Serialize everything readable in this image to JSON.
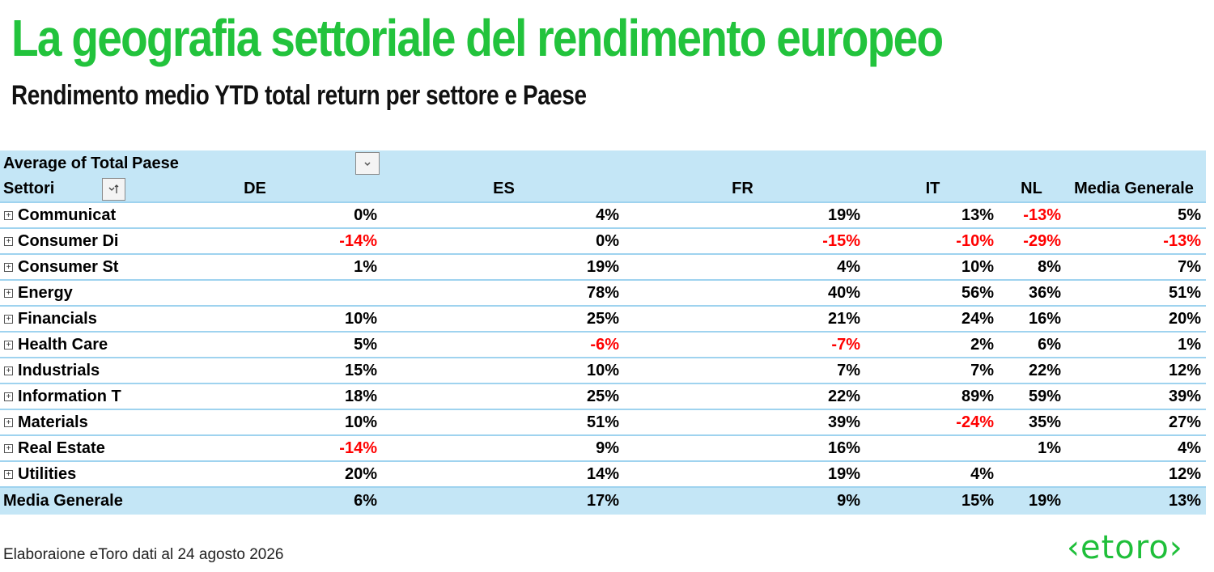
{
  "header": {
    "title": "La geografia settoriale del rendimento europeo",
    "subtitle": "Rendimento medio YTD total return per settore e Paese"
  },
  "pivot": {
    "value_field_label": "Average of Total",
    "column_field_label": "Paese",
    "row_field_label": "Settori",
    "columns": [
      "DE",
      "ES",
      "FR",
      "IT",
      "NL",
      "Media Generale"
    ],
    "rows": [
      {
        "label": "Communicat",
        "values": [
          "0%",
          "4%",
          "19%",
          "13%",
          "-13%",
          "5%"
        ]
      },
      {
        "label": "Consumer Di",
        "values": [
          "-14%",
          "0%",
          "-15%",
          "-10%",
          "-29%",
          "-13%"
        ]
      },
      {
        "label": "Consumer St",
        "values": [
          "1%",
          "19%",
          "4%",
          "10%",
          "8%",
          "7%"
        ]
      },
      {
        "label": "Energy",
        "values": [
          "",
          "78%",
          "40%",
          "56%",
          "36%",
          "51%"
        ]
      },
      {
        "label": "Financials",
        "values": [
          "10%",
          "25%",
          "21%",
          "24%",
          "16%",
          "20%"
        ]
      },
      {
        "label": "Health Care",
        "values": [
          "5%",
          "-6%",
          "-7%",
          "2%",
          "6%",
          "1%"
        ]
      },
      {
        "label": "Industrials",
        "values": [
          "15%",
          "10%",
          "7%",
          "7%",
          "22%",
          "12%"
        ]
      },
      {
        "label": "Information T",
        "values": [
          "18%",
          "25%",
          "22%",
          "89%",
          "59%",
          "39%"
        ]
      },
      {
        "label": "Materials",
        "values": [
          "10%",
          "51%",
          "39%",
          "-24%",
          "35%",
          "27%"
        ]
      },
      {
        "label": "Real Estate",
        "values": [
          "-14%",
          "9%",
          "16%",
          "",
          "1%",
          "4%"
        ]
      },
      {
        "label": "Utilities",
        "values": [
          "20%",
          "14%",
          "19%",
          "4%",
          "",
          "12%"
        ]
      }
    ],
    "total": {
      "label": "Media Generale",
      "values": [
        "6%",
        "17%",
        "9%",
        "15%",
        "19%",
        "13%"
      ]
    }
  },
  "icons": {
    "expand": "plus-box-icon",
    "dropdown": "chevron-down-icon",
    "sort": "sort-filter-icon"
  },
  "footer": {
    "source": "Elaboraione eToro dati al 24 agosto 2026",
    "logo": "‹etoro›"
  },
  "colors": {
    "title": "#22c33c",
    "subtitle": "#111111",
    "header_fill": "#c4e6f6",
    "row_border": "#9fd3ef",
    "negative": "#ff0000",
    "logo": "#1fbf3a"
  }
}
